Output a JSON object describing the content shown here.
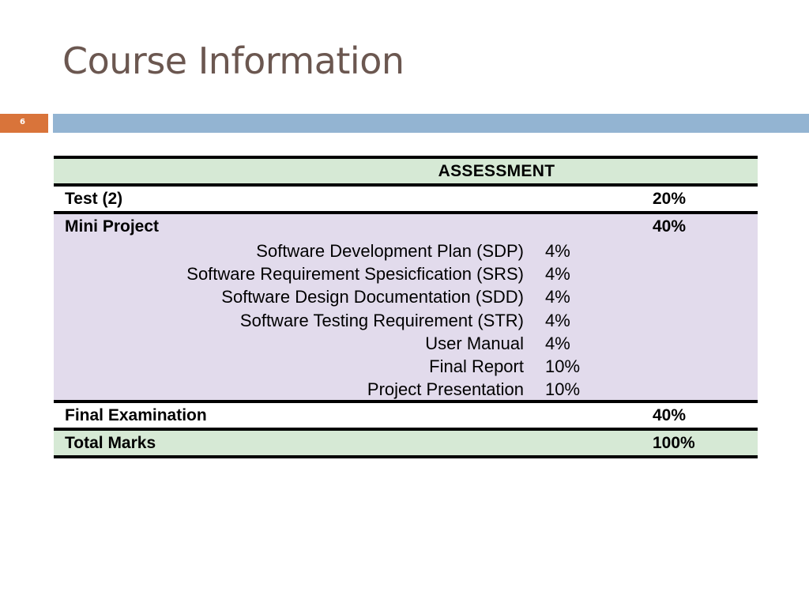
{
  "slide": {
    "title": "Course Information",
    "page_number": "6"
  },
  "table": {
    "header": "ASSESSMENT",
    "rows": {
      "test": {
        "label": "Test (2)",
        "value": "20%"
      },
      "mini_project": {
        "label": "Mini Project",
        "value": "40%"
      },
      "final_exam": {
        "label": "Final Examination",
        "value": "40%"
      },
      "total": {
        "label": "Total Marks",
        "value": "100%"
      }
    },
    "mini_project_items": [
      {
        "label": "Software Development Plan (SDP)",
        "value": "4%"
      },
      {
        "label": "Software Requirement Spesicfication (SRS)",
        "value": "4%"
      },
      {
        "label": "Software Design Documentation (SDD)",
        "value": "4%"
      },
      {
        "label": "Software Testing Requirement (STR)",
        "value": "4%"
      },
      {
        "label": "User Manual",
        "value": "4%"
      },
      {
        "label": "Final Report",
        "value": "10%"
      },
      {
        "label": "Project Presentation",
        "value": "10%"
      }
    ]
  },
  "colors": {
    "title": "#6b5750",
    "accent_orange": "#d9743a",
    "accent_blue": "#93b4d2",
    "row_green": "#d6e9d5",
    "row_lilac": "#e2dbec"
  }
}
